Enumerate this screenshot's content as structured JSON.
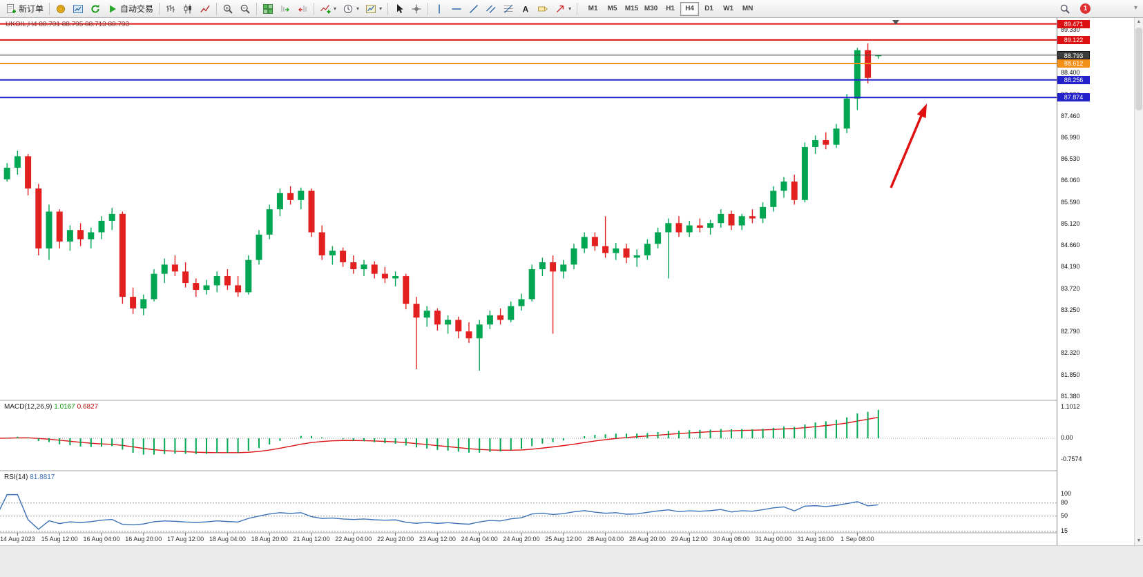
{
  "toolbar": {
    "new_order_label": "新订单",
    "auto_trading_label": "自动交易",
    "text_tool_label": "A",
    "timeframes": [
      "M1",
      "M5",
      "M15",
      "M30",
      "H1",
      "H4",
      "D1",
      "W1",
      "MN"
    ],
    "active_timeframe": "H4",
    "notification_count": "1"
  },
  "chart": {
    "title_symbol": "UKOIL,H4",
    "title_ohlc": "88.791 88.795 88.713 88.793",
    "current_price": {
      "label": "88.793",
      "value": 88.793
    },
    "hlines": [
      {
        "label": "89.471",
        "value": 89.471,
        "color": "#dd1111",
        "width": 2
      },
      {
        "label": "89.122",
        "value": 89.122,
        "color": "#dd1111",
        "width": 2
      },
      {
        "label": "88.612",
        "value": 88.612,
        "color": "#f29018",
        "width": 2
      },
      {
        "label": "88.256",
        "value": 88.256,
        "color": "#2222cc",
        "width": 2
      },
      {
        "label": "87.874",
        "value": 87.874,
        "color": "#2222cc",
        "width": 2
      }
    ],
    "price_axis_labels": [
      "89.330",
      "88.400",
      "87.930",
      "87.460",
      "86.990",
      "86.530",
      "86.060",
      "85.590",
      "85.120",
      "84.660",
      "84.190",
      "83.720",
      "83.250",
      "82.790",
      "82.320",
      "81.850",
      "81.380"
    ]
  },
  "macd_panel": {
    "name": "MACD(12,26,9)",
    "value_main": "1.0167",
    "value_signal": "0.6827",
    "axis_labels": [
      "1.1012",
      "0.00",
      "-0.7574"
    ]
  },
  "rsi_panel": {
    "name": "RSI(14)",
    "value": "81.8817",
    "axis_labels": [
      "100",
      "80",
      "50",
      "15"
    ],
    "levels": [
      80,
      50,
      15
    ]
  },
  "chart_data": {
    "type": "candlestick",
    "symbol": "UKOIL",
    "timeframe": "H4",
    "title": "UKOIL,H4 88.791 88.795 88.713 88.793",
    "ohlc_current": [
      88.791,
      88.795,
      88.713,
      88.793
    ],
    "y_axis_range": [
      81.38,
      89.33
    ],
    "x_labels": [
      "14 Aug 2023",
      "15 Aug 12:00",
      "16 Aug 04:00",
      "16 Aug 20:00",
      "17 Aug 12:00",
      "18 Aug 04:00",
      "18 Aug 20:00",
      "21 Aug 12:00",
      "22 Aug 04:00",
      "22 Aug 20:00",
      "23 Aug 12:00",
      "24 Aug 04:00",
      "24 Aug 20:00",
      "25 Aug 12:00",
      "28 Aug 04:00",
      "28 Aug 20:00",
      "29 Aug 12:00",
      "30 Aug 08:00",
      "31 Aug 00:00",
      "31 Aug 16:00",
      "1 Sep 08:00"
    ],
    "indicators": [
      "MACD(12,26,9) 1.0167 0.6827",
      "RSI(14) 81.8817"
    ],
    "candles": [
      [
        86.3,
        86.35,
        86.0,
        86.1
      ],
      [
        86.1,
        86.45,
        86.05,
        86.35
      ],
      [
        86.35,
        86.72,
        86.2,
        86.6
      ],
      [
        86.6,
        86.65,
        85.75,
        85.9
      ],
      [
        85.9,
        86.0,
        84.45,
        84.6
      ],
      [
        84.6,
        85.55,
        84.35,
        85.4
      ],
      [
        85.4,
        85.45,
        84.6,
        84.75
      ],
      [
        84.75,
        85.1,
        84.55,
        85.0
      ],
      [
        85.0,
        85.15,
        84.65,
        84.8
      ],
      [
        84.8,
        85.05,
        84.6,
        84.95
      ],
      [
        84.95,
        85.3,
        84.8,
        85.2
      ],
      [
        85.2,
        85.48,
        85.0,
        85.35
      ],
      [
        85.35,
        85.4,
        83.4,
        83.55
      ],
      [
        83.55,
        83.75,
        83.18,
        83.3
      ],
      [
        83.3,
        83.6,
        83.15,
        83.5
      ],
      [
        83.5,
        84.15,
        83.45,
        84.05
      ],
      [
        84.05,
        84.38,
        83.85,
        84.25
      ],
      [
        84.25,
        84.45,
        84.0,
        84.1
      ],
      [
        84.1,
        84.3,
        83.75,
        83.85
      ],
      [
        83.85,
        83.95,
        83.55,
        83.7
      ],
      [
        83.7,
        83.92,
        83.6,
        83.8
      ],
      [
        83.8,
        84.1,
        83.65,
        84.0
      ],
      [
        84.0,
        84.15,
        83.7,
        83.8
      ],
      [
        83.8,
        84.0,
        83.55,
        83.65
      ],
      [
        83.65,
        84.45,
        83.6,
        84.35
      ],
      [
        84.35,
        85.0,
        84.25,
        84.9
      ],
      [
        84.9,
        85.55,
        84.8,
        85.45
      ],
      [
        85.45,
        85.9,
        85.3,
        85.8
      ],
      [
        85.8,
        85.95,
        85.55,
        85.65
      ],
      [
        85.65,
        85.92,
        85.45,
        85.85
      ],
      [
        85.85,
        85.9,
        84.85,
        84.95
      ],
      [
        84.95,
        85.1,
        84.35,
        84.45
      ],
      [
        84.45,
        84.65,
        84.25,
        84.55
      ],
      [
        84.55,
        84.62,
        84.2,
        84.3
      ],
      [
        84.3,
        84.45,
        84.05,
        84.15
      ],
      [
        84.15,
        84.35,
        84.0,
        84.25
      ],
      [
        84.25,
        84.32,
        83.95,
        84.05
      ],
      [
        84.05,
        84.2,
        83.85,
        83.95
      ],
      [
        83.95,
        84.1,
        83.78,
        84.0
      ],
      [
        84.0,
        84.05,
        83.28,
        83.4
      ],
      [
        83.4,
        83.55,
        81.98,
        83.1
      ],
      [
        83.1,
        83.35,
        82.9,
        83.25
      ],
      [
        83.25,
        83.3,
        82.82,
        82.95
      ],
      [
        82.95,
        83.15,
        82.75,
        83.05
      ],
      [
        83.05,
        83.12,
        82.65,
        82.8
      ],
      [
        82.8,
        83.0,
        82.55,
        82.65
      ],
      [
        82.65,
        83.05,
        81.95,
        82.95
      ],
      [
        82.95,
        83.25,
        82.85,
        83.15
      ],
      [
        83.15,
        83.3,
        82.95,
        83.05
      ],
      [
        83.05,
        83.45,
        83.0,
        83.35
      ],
      [
        83.35,
        83.62,
        83.25,
        83.5
      ],
      [
        83.5,
        84.25,
        83.45,
        84.15
      ],
      [
        84.15,
        84.4,
        84.0,
        84.3
      ],
      [
        84.3,
        84.45,
        82.75,
        84.1
      ],
      [
        84.1,
        84.35,
        83.95,
        84.25
      ],
      [
        84.25,
        84.7,
        84.15,
        84.6
      ],
      [
        84.6,
        84.95,
        84.5,
        84.85
      ],
      [
        84.85,
        84.95,
        84.55,
        84.65
      ],
      [
        84.65,
        85.3,
        84.4,
        84.5
      ],
      [
        84.5,
        84.72,
        84.35,
        84.6
      ],
      [
        84.6,
        84.7,
        84.28,
        84.4
      ],
      [
        84.4,
        84.58,
        84.2,
        84.45
      ],
      [
        84.45,
        84.8,
        84.35,
        84.7
      ],
      [
        84.7,
        85.05,
        84.6,
        84.95
      ],
      [
        84.95,
        85.25,
        83.95,
        85.15
      ],
      [
        85.15,
        85.3,
        84.85,
        84.95
      ],
      [
        84.95,
        85.2,
        84.85,
        85.1
      ],
      [
        85.1,
        85.25,
        84.95,
        85.05
      ],
      [
        85.05,
        85.22,
        84.9,
        85.15
      ],
      [
        85.15,
        85.45,
        85.05,
        85.35
      ],
      [
        85.35,
        85.42,
        85.0,
        85.1
      ],
      [
        85.1,
        85.35,
        85.0,
        85.3
      ],
      [
        85.3,
        85.45,
        85.15,
        85.25
      ],
      [
        85.25,
        85.6,
        85.15,
        85.5
      ],
      [
        85.5,
        85.95,
        85.4,
        85.85
      ],
      [
        85.85,
        86.15,
        85.7,
        86.05
      ],
      [
        86.05,
        86.2,
        85.55,
        85.65
      ],
      [
        85.65,
        86.9,
        85.6,
        86.8
      ],
      [
        86.8,
        87.05,
        86.65,
        86.95
      ],
      [
        86.95,
        87.12,
        86.75,
        86.85
      ],
      [
        86.85,
        87.3,
        86.78,
        87.2
      ],
      [
        87.2,
        87.95,
        87.1,
        87.85
      ],
      [
        87.85,
        88.95,
        87.6,
        88.9
      ],
      [
        88.9,
        89.05,
        88.18,
        88.3
      ],
      [
        88.791,
        88.795,
        88.713,
        88.793
      ]
    ]
  },
  "colors": {
    "candle_up": "#00a651",
    "candle_down": "#e32020",
    "macd_hist": "#00a651",
    "macd_signal": "#dd1111",
    "rsi_line": "#3b72b8",
    "arrow": "#e01010",
    "line_red": "#dd1111",
    "line_orange": "#f29018",
    "line_blue": "#2222cc"
  }
}
